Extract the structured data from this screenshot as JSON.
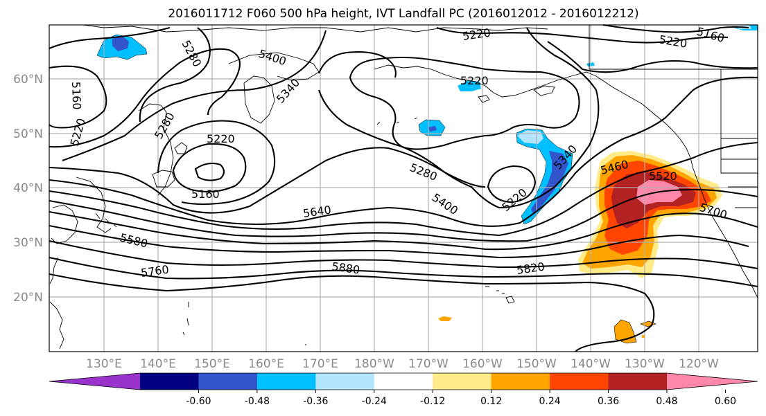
{
  "title": "2016011712 F060 500 hPa height, IVT Landfall PC (2016012012 - 2016012212)",
  "axes": {
    "lat_labels": [
      "60°N",
      "50°N",
      "40°N",
      "30°N",
      "20°N"
    ],
    "lon_labels": [
      "130°E",
      "140°E",
      "150°E",
      "160°E",
      "170°E",
      "180°W",
      "170°W",
      "160°W",
      "150°W",
      "140°W",
      "130°W",
      "120°W"
    ]
  },
  "contour_labels": [
    "5280",
    "5400",
    "5220",
    "5160",
    "5160",
    "5220",
    "5340",
    "5220",
    "5280",
    "5160",
    "5220",
    "5220",
    "5280",
    "5400",
    "5220",
    "5340",
    "5460",
    "5520",
    "5700",
    "5640",
    "5580",
    "5760",
    "5880",
    "5820"
  ],
  "colorbar": {
    "colors": [
      "#9933cc",
      "#000080",
      "#3355cc",
      "#00bfff",
      "#b3e5ff",
      "#ffffff",
      "#ffeb8a",
      "#ffa500",
      "#ff4500",
      "#b22222",
      "#ff88aa"
    ],
    "tick_labels": [
      "-0.60",
      "-0.48",
      "-0.36",
      "-0.24",
      "-0.12",
      "0.12",
      "0.24",
      "0.36",
      "0.48",
      "0.60"
    ]
  },
  "shading_colors": {
    "neg_light": "#b3e5ff",
    "neg_mid": "#00bfff",
    "neg_dark": "#3355cc",
    "neg_darkest": "#000080",
    "neg_purple": "#9933cc",
    "pos_light": "#ffeb8a",
    "pos_mid": "#ffa500",
    "pos_strong": "#ff4500",
    "pos_dark": "#b22222",
    "pos_max": "#ff88aa"
  }
}
